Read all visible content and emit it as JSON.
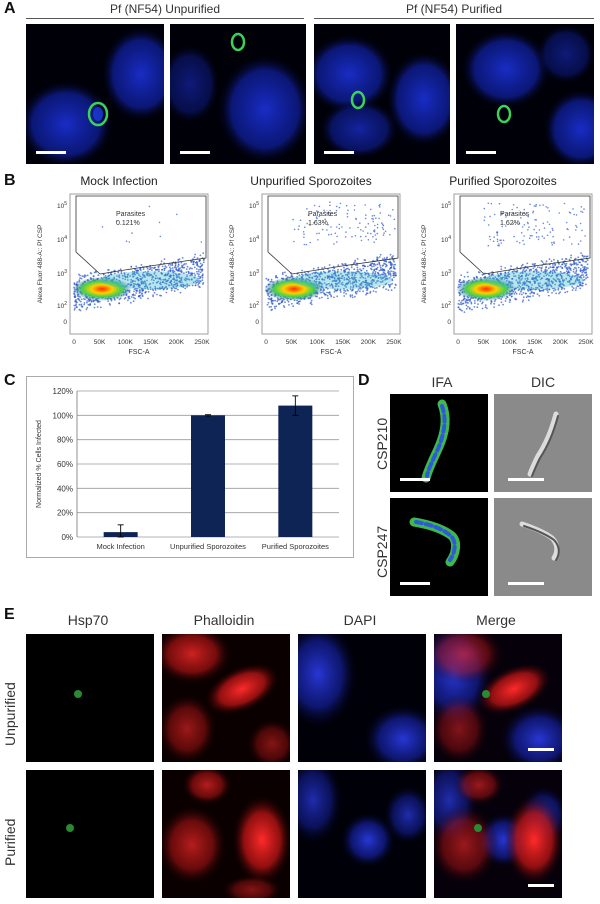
{
  "panel_labels": {
    "A": "A",
    "B": "B",
    "C": "C",
    "D": "D",
    "E": "E"
  },
  "panelA": {
    "group_left": "Pf (NF54) Unpurified",
    "group_right": "Pf (NF54) Purified"
  },
  "panelB": {
    "plots": [
      {
        "title": "Mock Infection",
        "gate_label": "Parasites",
        "gate_pct": "0.121%",
        "xlabel": "FSC-A",
        "ylabel": "Alexa Fluor 488-A:: Pf CSP",
        "density": "low"
      },
      {
        "title": "Unpurified Sporozoites",
        "gate_label": "Parasites",
        "gate_pct": "1.63%",
        "xlabel": "FSC-A",
        "ylabel": "Alexa Fluor 488-A:: Pf CSP",
        "density": "high"
      },
      {
        "title": "Purified Sporozoites",
        "gate_label": "Parasites",
        "gate_pct": "1.62%",
        "xlabel": "FSC-A",
        "ylabel": "Alexa Fluor 488-A:: Pf CSP",
        "density": "high"
      }
    ],
    "xticks": [
      "0",
      "50K",
      "100K",
      "150K",
      "200K",
      "250K"
    ],
    "yticks": [
      "10^5",
      "10^4",
      "10^3",
      "10^2",
      "0"
    ]
  },
  "chart_data": {
    "type": "bar",
    "categories": [
      "Mock Infection",
      "Unpurified Sporozoites",
      "Purified Sporozoites"
    ],
    "values": [
      4,
      100,
      108
    ],
    "errors": [
      6,
      0.5,
      8
    ],
    "ylabel": "Normalized % Cells Infected",
    "yticks": [
      "0%",
      "20%",
      "40%",
      "60%",
      "80%",
      "100%",
      "120%"
    ],
    "ylim": [
      0,
      120
    ],
    "grid": true,
    "bar_color": "#0d2454"
  },
  "panelD": {
    "col_labels": [
      "IFA",
      "DIC"
    ],
    "row_labels": [
      "CSP210",
      "CSP247"
    ]
  },
  "panelE": {
    "col_labels": [
      "Hsp70",
      "Phalloidin",
      "DAPI",
      "Merge"
    ],
    "row_labels": [
      "Unpurified",
      "Purified"
    ]
  }
}
